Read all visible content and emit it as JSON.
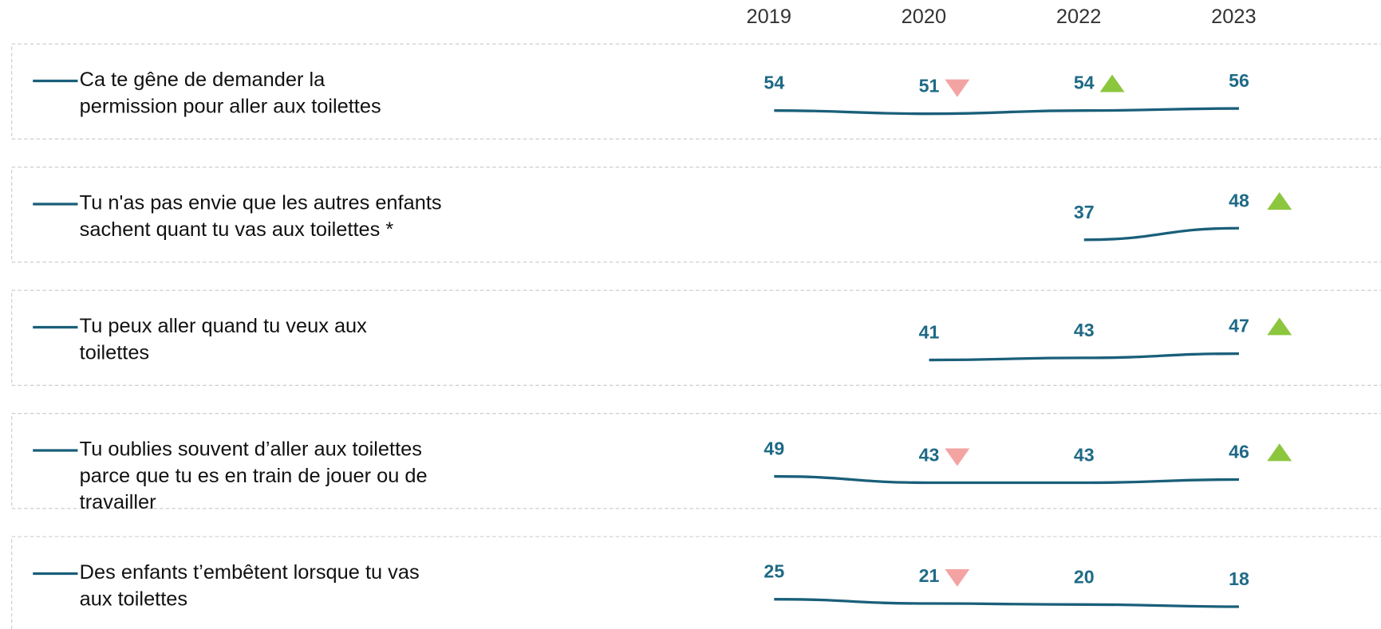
{
  "chart_data": {
    "type": "line",
    "categories": [
      "2019",
      "2020",
      "2022",
      "2023"
    ],
    "color": "#1a5f7a",
    "label_color": "#1f6a86",
    "up_color": "#8cc63f",
    "down_color": "#f4a3a3",
    "series": [
      {
        "name": [
          "Ca te gêne de demander la",
          "permission pour aller aux toilettes"
        ],
        "values": [
          54,
          51,
          54,
          56
        ],
        "trends": [
          null,
          "down",
          "up",
          null
        ]
      },
      {
        "name": [
          "Tu n'as pas envie que les autres enfants",
          "sachent quant tu vas aux toilettes *"
        ],
        "values": [
          null,
          null,
          37,
          48
        ],
        "trends": [
          null,
          null,
          null,
          "up"
        ]
      },
      {
        "name": [
          "Tu peux aller quand tu veux aux",
          "toilettes"
        ],
        "values": [
          null,
          41,
          43,
          47
        ],
        "trends": [
          null,
          null,
          null,
          "up"
        ]
      },
      {
        "name": [
          "Tu oublies souvent d’aller aux toilettes",
          "parce que tu es en train de jouer ou de",
          "travailler"
        ],
        "values": [
          49,
          43,
          43,
          46
        ],
        "trends": [
          null,
          "down",
          null,
          "up"
        ]
      },
      {
        "name": [
          "Des enfants t’embêtent lorsque tu vas",
          "aux toilettes"
        ],
        "values": [
          25,
          21,
          20,
          18
        ],
        "trends": [
          null,
          "down",
          null,
          null
        ]
      }
    ]
  }
}
